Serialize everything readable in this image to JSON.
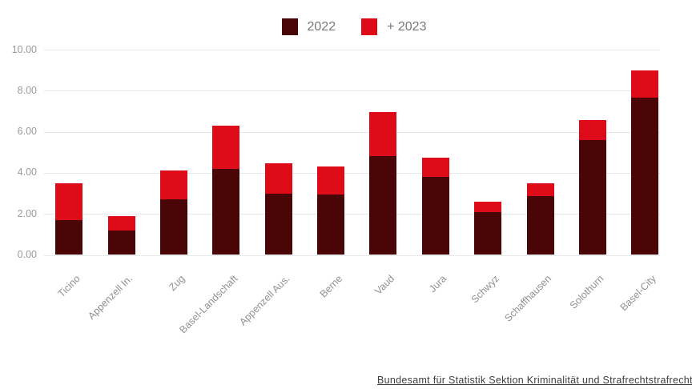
{
  "legend": {
    "items": [
      {
        "label": "2022",
        "color": "#4a0606"
      },
      {
        "label": "+ 2023",
        "color": "#de0c18"
      }
    ]
  },
  "source_link": {
    "text": "Bundesamt für Statistik Sektion Kriminalität und Strafrechtstrafrecht"
  },
  "chart_data": {
    "type": "bar",
    "stacked": true,
    "title": "",
    "xlabel": "",
    "ylabel": "",
    "categories": [
      "Ticino",
      "Appenzell In.",
      "Zug",
      "Basel-Landschaft",
      "Appenzell Aus.",
      "Berne",
      "Vaud",
      "Jura",
      "Schwyz",
      "Schaffhausen",
      "Solothurn",
      "Basel-City"
    ],
    "series": [
      {
        "name": "2022",
        "color": "#4a0606",
        "values": [
          1.7,
          1.2,
          2.7,
          4.2,
          3.0,
          2.95,
          4.8,
          3.8,
          2.1,
          2.85,
          5.6,
          7.65
        ]
      },
      {
        "name": "+ 2023",
        "color": "#de0c18",
        "values": [
          1.8,
          0.7,
          1.4,
          2.1,
          1.45,
          1.35,
          2.15,
          0.95,
          0.5,
          0.65,
          0.95,
          1.35
        ]
      }
    ],
    "totals": [
      3.5,
      1.9,
      4.1,
      6.3,
      4.45,
      4.3,
      6.95,
      4.75,
      2.6,
      3.5,
      6.55,
      9.0
    ],
    "ylim": [
      0,
      10
    ],
    "yticks": [
      0,
      2,
      4,
      6,
      8,
      10
    ],
    "ytick_labels": [
      "0.00",
      "2.00",
      "4.00",
      "6.00",
      "8.00",
      "10.00"
    ],
    "grid": true,
    "legend_position": "top",
    "xtick_rotation": -45
  }
}
